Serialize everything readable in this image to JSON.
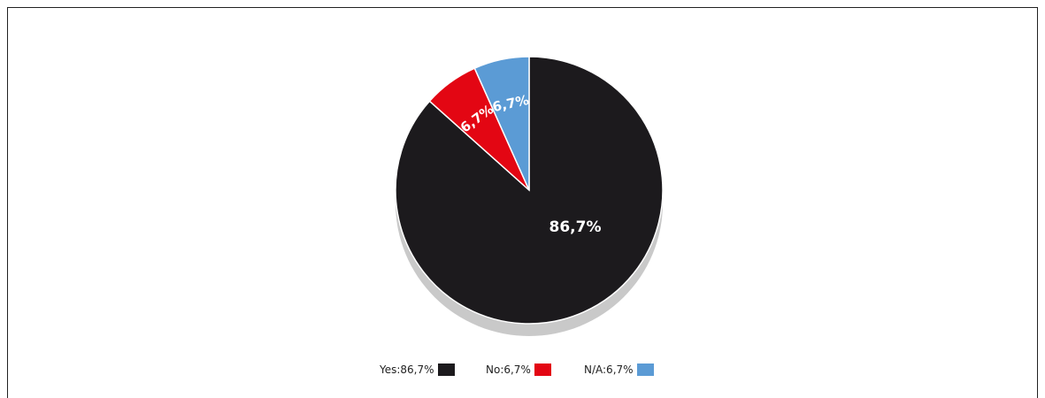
{
  "chart_data": {
    "type": "pie",
    "categories": [
      "Yes",
      "No",
      "N/A"
    ],
    "values": [
      86.7,
      6.7,
      6.7
    ],
    "slice_labels": [
      "86,7%",
      "6,7%",
      "6,7%"
    ],
    "colors": [
      "#1c1a1d",
      "#e30613",
      "#5b9bd5"
    ],
    "shadow_color": "#c9c9c9",
    "legend": {
      "position": "bottom",
      "entries": [
        "Yes:86,7%",
        "No:6,7%",
        "N/A:6,7%"
      ]
    }
  }
}
